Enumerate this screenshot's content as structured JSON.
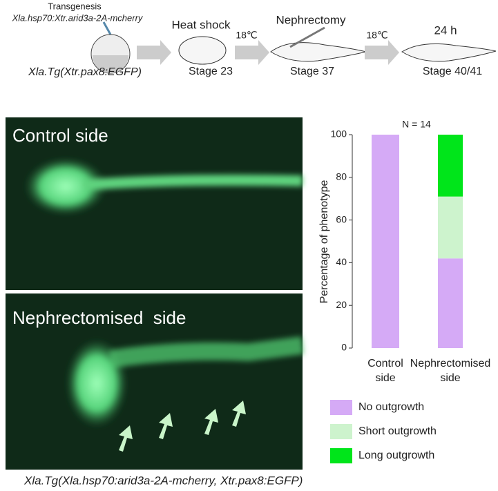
{
  "schematic": {
    "transgenesis": "Transgenesis",
    "construct": "Xla.hsp70:Xtr.arid3a-2A-mcherry",
    "line": "Xla.Tg(Xtr.pax8:EGFP)",
    "heat_shock": "Heat shock",
    "stage_a": "Stage 23",
    "temp_a": "18℃",
    "nephrectomy": "Nephrectomy",
    "stage_b": "Stage 37",
    "temp_b": "18℃",
    "time": "24 h",
    "stage_c": "Stage 40/41"
  },
  "panels": {
    "top": "Control side",
    "bottom": "Nephrectomised  side"
  },
  "caption": "Xla.Tg(Xla.hsp70:arid3a-2A-mcherry, Xtr.pax8:EGFP)",
  "chart_data": {
    "type": "stacked-bar",
    "title": "N = 14",
    "y_label": "Percentage of phenotype",
    "categories": [
      "Control side",
      "Nephrectomised side"
    ],
    "series": [
      {
        "name": "No outgrowth",
        "color": "#d5aaf6",
        "values": [
          100,
          42
        ]
      },
      {
        "name": "Short outgrowth",
        "color": "#cdf3cd",
        "values": [
          0,
          29
        ]
      },
      {
        "name": "Long outgrowth",
        "color": "#00e51a",
        "values": [
          0,
          29
        ]
      }
    ],
    "ylim": [
      0,
      100
    ],
    "yticks": [
      0,
      20,
      40,
      60,
      80,
      100
    ],
    "legend": "bottom"
  }
}
